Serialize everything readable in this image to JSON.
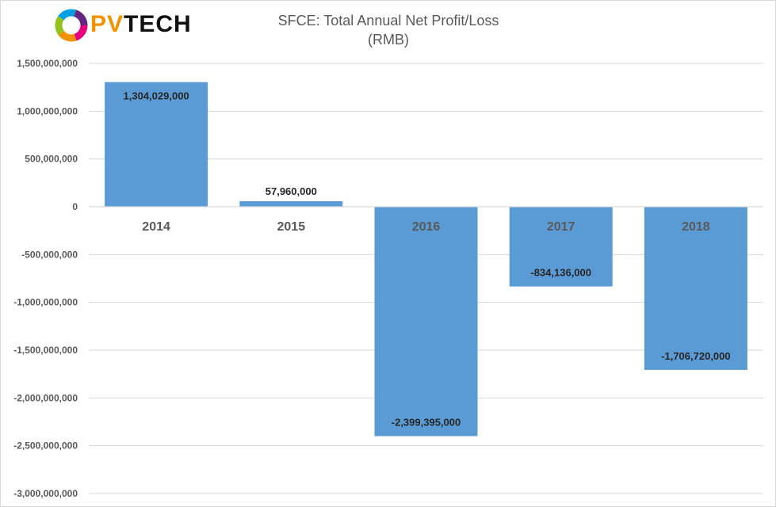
{
  "logo": {
    "part1": "PV",
    "part2": "TECH"
  },
  "title_line1": "SFCE: Total Annual Net Profit/Loss",
  "title_line2": "(RMB)",
  "colors": {
    "bar": "#5b9bd5",
    "grid": "#d9d9d9",
    "axis_text": "#595959",
    "label_text": "#262626"
  },
  "chart_data": {
    "type": "bar",
    "title": "SFCE: Total Annual Net Profit/Loss (RMB)",
    "categories": [
      "2014",
      "2015",
      "2016",
      "2017",
      "2018"
    ],
    "values": [
      1304029000,
      57960000,
      -2399395000,
      -834136000,
      -1706720000
    ],
    "data_labels": [
      "1,304,029,000",
      "57,960,000",
      "-2,399,395,000",
      "-834,136,000",
      "-1,706,720,000"
    ],
    "ylim": [
      -3000000000,
      1500000000
    ],
    "yticks": [
      1500000000,
      1000000000,
      500000000,
      0,
      -500000000,
      -1000000000,
      -1500000000,
      -2000000000,
      -2500000000,
      -3000000000
    ],
    "ytick_labels": [
      "1,500,000,000",
      "1,000,000,000",
      "500,000,000",
      "0",
      "-500,000,000",
      "-1,000,000,000",
      "-1,500,000,000",
      "-2,000,000,000",
      "-2,500,000,000",
      "-3,000,000,000"
    ],
    "grid": true,
    "xlabel": "",
    "ylabel": ""
  }
}
